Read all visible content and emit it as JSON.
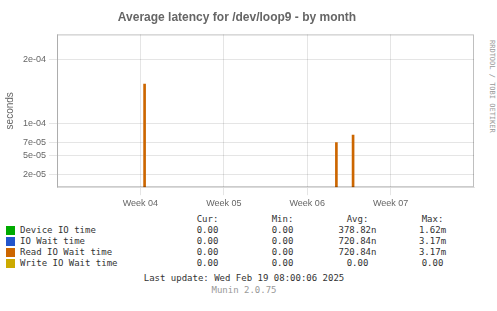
{
  "chart_data": {
    "type": "bar",
    "title": "Average latency for /dev/loop9 - by month",
    "ylabel": "seconds",
    "x": [
      1.05,
      3.35,
      3.55
    ],
    "values": [
      0.000162,
      7e-05,
      8.2e-05
    ],
    "color": "#cc6600",
    "xlim": [
      0.0,
      5.0
    ],
    "xticks": [
      {
        "value": 1.0,
        "label": "Week 04"
      },
      {
        "value": 2.0,
        "label": "Week 05"
      },
      {
        "value": 3.0,
        "label": "Week 06"
      },
      {
        "value": 4.0,
        "label": "Week 07"
      }
    ],
    "ylim": [
      0,
      0.00024
    ],
    "yticks": [
      {
        "value": 2e-05,
        "label": "2e-05"
      },
      {
        "value": 5e-05,
        "label": "5e-05"
      },
      {
        "value": 7e-05,
        "label": "7e-05"
      },
      {
        "value": 0.0001,
        "label": "1e-04"
      },
      {
        "value": 0.0002,
        "label": "2e-04"
      }
    ],
    "grid": true,
    "table": {
      "headers": [
        "Cur:",
        "Min:",
        "Avg:",
        "Max:"
      ],
      "rows": [
        {
          "name": "Device IO time",
          "color": "#00aa00",
          "cells": [
            "0.00",
            "0.00",
            "378.82n",
            "1.62m"
          ]
        },
        {
          "name": "IO Wait time",
          "color": "#2255cc",
          "cells": [
            "0.00",
            "0.00",
            "720.84n",
            "3.17m"
          ]
        },
        {
          "name": "Read IO Wait time",
          "color": "#cc6600",
          "cells": [
            "0.00",
            "0.00",
            "720.84n",
            "3.17m"
          ]
        },
        {
          "name": "Write IO Wait time",
          "color": "#ccaa00",
          "cells": [
            "0.00",
            "0.00",
            "0.00",
            "0.00"
          ]
        }
      ]
    },
    "annotations": [
      "Last update: Wed Feb 19 08:00:06 2025",
      "Munin 2.0.75",
      "RRDTOOL / TOBI OETIKER"
    ]
  }
}
